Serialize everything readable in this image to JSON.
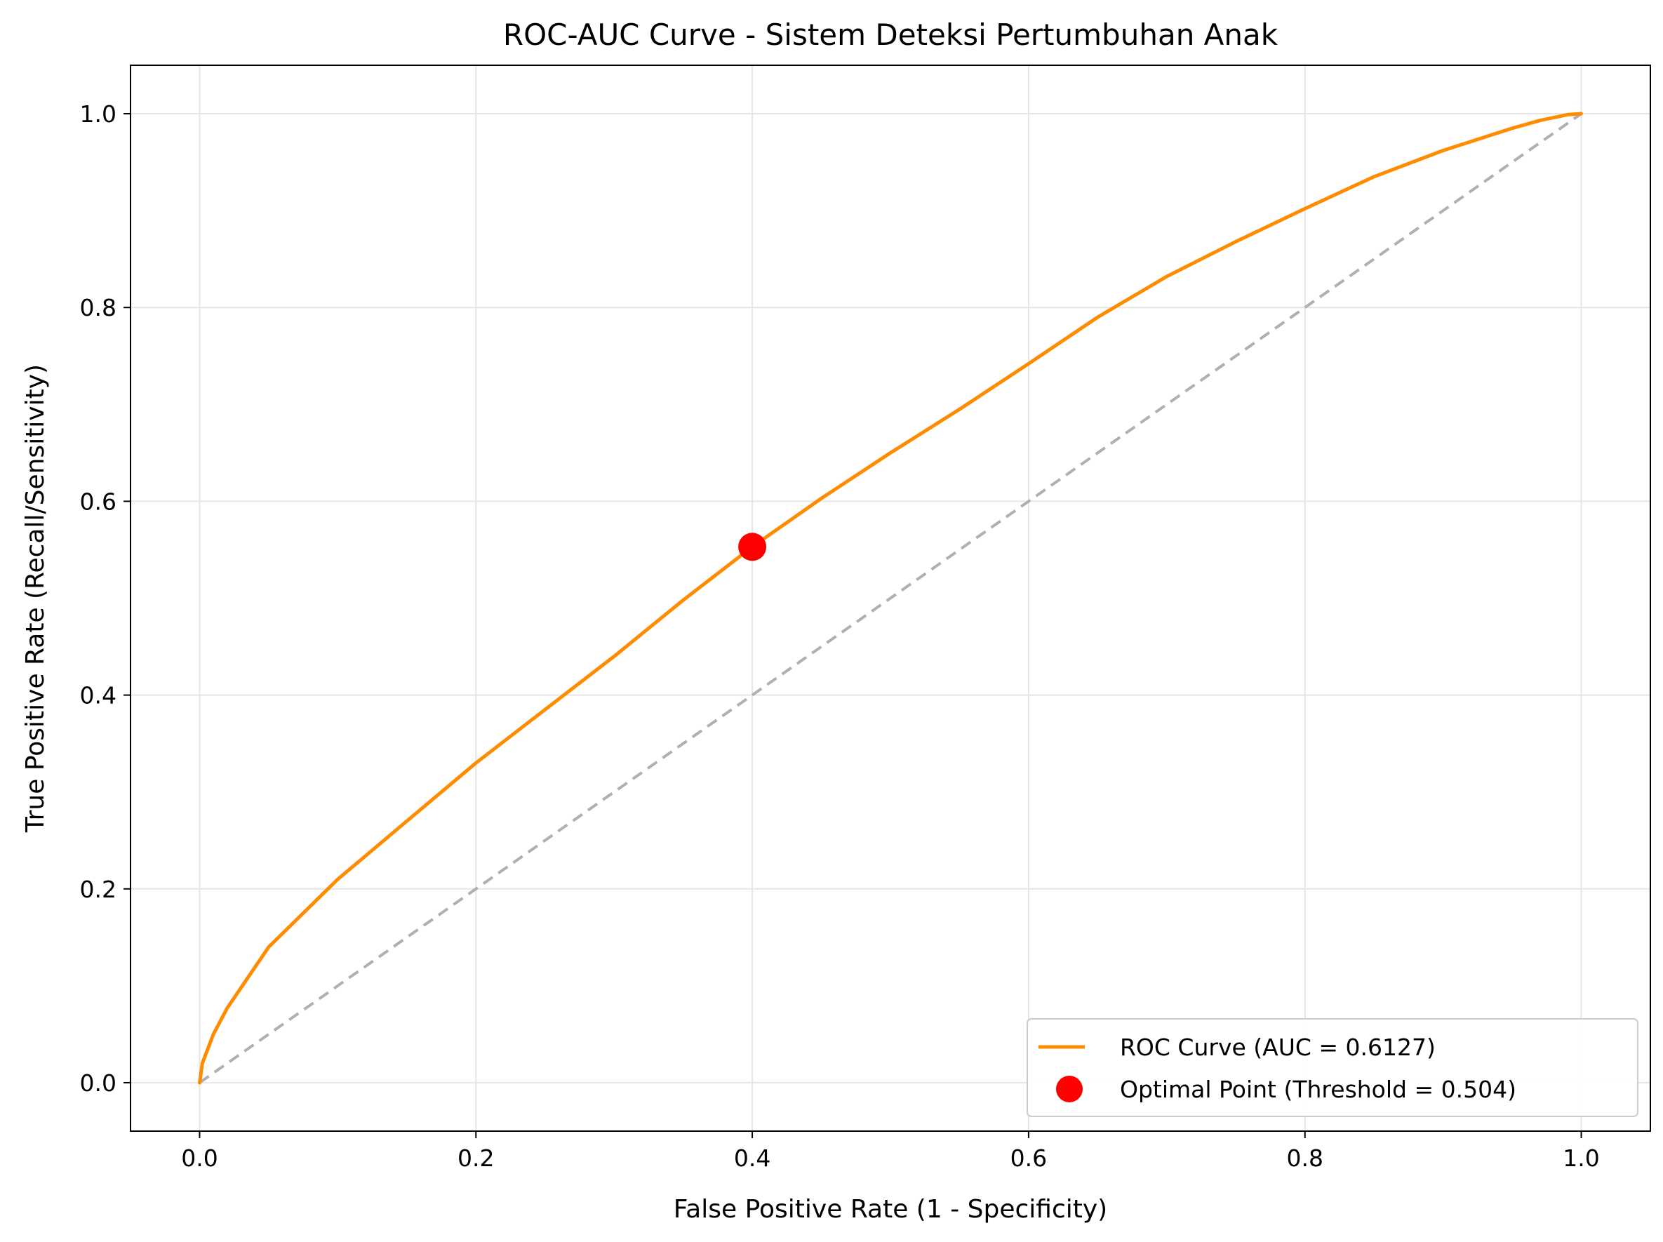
{
  "chart_data": {
    "type": "line",
    "title": "ROC-AUC Curve - Sistem Deteksi Pertumbuhan Anak",
    "xlabel": "False Positive Rate (1 - Specificity)",
    "ylabel": "True Positive Rate (Recall/Sensitivity)",
    "xlim": [
      -0.05,
      1.05
    ],
    "ylim": [
      -0.05,
      1.05
    ],
    "x_ticks": [
      "0.0",
      "0.2",
      "0.4",
      "0.6",
      "0.8",
      "1.0"
    ],
    "y_ticks": [
      "0.0",
      "0.2",
      "0.4",
      "0.6",
      "0.8",
      "1.0"
    ],
    "grid": true,
    "legend_position": "lower right",
    "series": [
      {
        "name": "ROC Curve (AUC = 0.6127)",
        "kind": "line",
        "color": "#ff8c00",
        "x": [
          0.0,
          0.002,
          0.01,
          0.02,
          0.05,
          0.1,
          0.15,
          0.2,
          0.25,
          0.3,
          0.35,
          0.4,
          0.45,
          0.5,
          0.55,
          0.6,
          0.65,
          0.7,
          0.75,
          0.8,
          0.85,
          0.9,
          0.95,
          0.97,
          0.99,
          1.0
        ],
        "y": [
          0.0,
          0.02,
          0.05,
          0.077,
          0.14,
          0.21,
          0.27,
          0.33,
          0.385,
          0.44,
          0.498,
          0.553,
          0.603,
          0.65,
          0.695,
          0.742,
          0.79,
          0.832,
          0.868,
          0.902,
          0.935,
          0.962,
          0.985,
          0.993,
          0.999,
          1.0
        ]
      },
      {
        "name": "Optimal Point (Threshold = 0.504)",
        "kind": "scatter",
        "color": "#ff0000",
        "x": [
          0.4
        ],
        "y": [
          0.553
        ]
      },
      {
        "name": "",
        "kind": "reference-line",
        "color": "#b0b0b0",
        "x": [
          0.0,
          1.0
        ],
        "y": [
          0.0,
          1.0
        ]
      }
    ]
  }
}
